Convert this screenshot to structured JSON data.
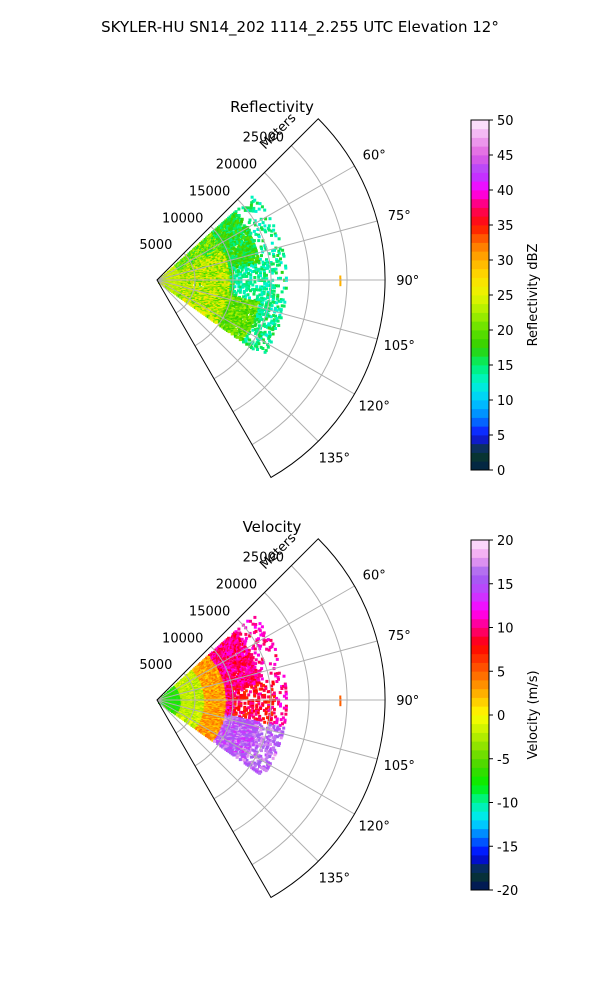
{
  "title": "SKYLER-HU  SN14_202  1114_2.255 UTC Elevation 12°",
  "chart_data": [
    {
      "type": "heatmap",
      "projection": "polar-sector",
      "title": "Reflectivity",
      "radial_axis_label": "Meters",
      "radial_range": [
        0,
        30000
      ],
      "radial_ticks": [
        5000,
        10000,
        15000,
        20000,
        25000
      ],
      "azimuth_range_deg": [
        45,
        150
      ],
      "azimuth_tick_labels": [
        "60°",
        "75°",
        "90°",
        "105°",
        "120°",
        "135°"
      ],
      "grid": true,
      "colorbar": {
        "label": "Reflectivity dBZ",
        "range": [
          0,
          50
        ],
        "ticks": [
          "0",
          "5",
          "10",
          "15",
          "20",
          "25",
          "30",
          "35",
          "40",
          "45",
          "50"
        ],
        "colormap": "pyart_NWSRef",
        "placement": "right"
      },
      "field_summary": [
        {
          "region": "near range 0–10 km, 50–125°",
          "value": 22
        },
        {
          "region": "band 10–15 km, 60–80°",
          "value": 17
        },
        {
          "region": "band 10–15 km, 100–120°",
          "value": 19
        },
        {
          "region": "sparse echoes 15–18 km",
          "value": 13
        },
        {
          "region": "isolated echo ~24 km at 90°",
          "value": 30
        }
      ]
    },
    {
      "type": "heatmap",
      "projection": "polar-sector",
      "title": "Velocity",
      "radial_axis_label": "Meters",
      "radial_range": [
        0,
        30000
      ],
      "radial_ticks": [
        5000,
        10000,
        15000,
        20000,
        25000
      ],
      "azimuth_range_deg": [
        45,
        150
      ],
      "azimuth_tick_labels": [
        "60°",
        "75°",
        "90°",
        "105°",
        "120°",
        "135°"
      ],
      "grid": true,
      "colorbar": {
        "label": "Velocity (m/s)",
        "range": [
          -20,
          20
        ],
        "ticks": [
          "-20",
          "-15",
          "-10",
          "-5",
          "0",
          "5",
          "10",
          "15",
          "20"
        ],
        "colormap": "pyart_BuDRd18",
        "placement": "right"
      },
      "field_summary": [
        {
          "region": "0–3 km",
          "value": -8
        },
        {
          "region": "3–6 km",
          "value": -3
        },
        {
          "region": "6–9 km",
          "value": 2
        },
        {
          "region": "9–14 km north",
          "value": 10
        },
        {
          "region": "11–15 km south",
          "value": 16
        },
        {
          "region": "isolated echo ~24 km at 90°",
          "value": 5
        }
      ]
    }
  ]
}
